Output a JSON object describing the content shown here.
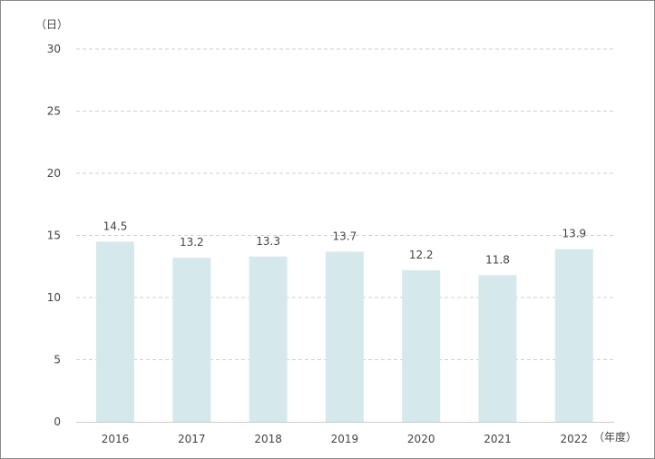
{
  "chart_data": {
    "type": "bar",
    "categories": [
      "2016",
      "2017",
      "2018",
      "2019",
      "2020",
      "2021",
      "2022"
    ],
    "values": [
      14.5,
      13.2,
      13.3,
      13.7,
      12.2,
      11.8,
      13.9
    ],
    "value_labels": [
      "14.5",
      "13.2",
      "13.3",
      "13.7",
      "12.2",
      "11.8",
      "13.9"
    ],
    "ylim": [
      0,
      30
    ],
    "yticks": [
      "0",
      "5",
      "10",
      "15",
      "20",
      "25",
      "30"
    ],
    "y_unit": "（日）",
    "x_unit": "（年度）",
    "grid": true,
    "bar_color": "#d5e9ec",
    "grid_color": "#cfcfcf",
    "axis_color": "#cccccc"
  }
}
